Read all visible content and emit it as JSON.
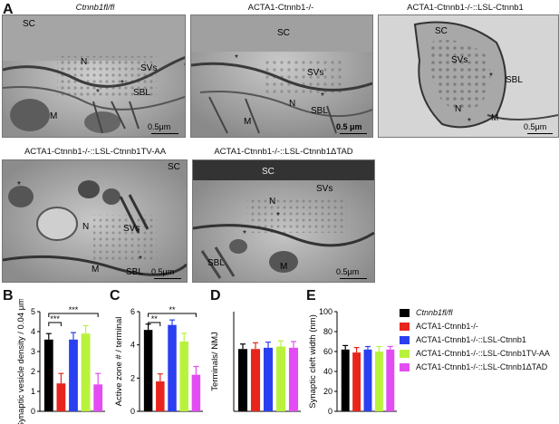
{
  "panel_letters": {
    "a": "A",
    "b": "B",
    "c": "C",
    "d": "D",
    "e": "E"
  },
  "em_panels": [
    {
      "title": "Ctnnb1fl/fl",
      "labels": [
        "SC",
        "N",
        "SVs",
        "SBL",
        "M",
        "*",
        "*"
      ],
      "scale": "0.5μm"
    },
    {
      "title": "ACTA1-Ctnnb1-/-",
      "labels": [
        "SC",
        "N",
        "SVs",
        "SBL",
        "M",
        "*",
        "*"
      ],
      "scale": "0.5 μm"
    },
    {
      "title": "ACTA1-Ctnnb1-/-::LSL-Ctnnb1",
      "labels": [
        "SC",
        "SVs",
        "SBL",
        "N",
        "M",
        "*",
        "*"
      ],
      "scale": "0.5μm"
    },
    {
      "title": "ACTA1-Ctnnb1-/-::LSL-Ctnnb1TV-AA",
      "labels": [
        "SC",
        "N",
        "SVs",
        "SBL",
        "M",
        "*",
        "*"
      ],
      "scale": "0.5μm"
    },
    {
      "title": "ACTA1-Ctnnb1-/-::LSL-Ctnnb1ΔTAD",
      "labels": [
        "SC",
        "SVs",
        "N",
        "SBL",
        "M",
        "*",
        "*"
      ],
      "scale": "0.5μm"
    }
  ],
  "colors": {
    "ctrl": "#000000",
    "ko": "#e8251c",
    "lsl": "#2a3ff0",
    "tvaa": "#b9f23d",
    "dtad": "#e34cf2"
  },
  "legend": [
    "Ctnnb1fl/fl",
    "ACTA1-Ctnnb1-/-",
    "ACTA1-Ctnnb1-/-::LSL-Ctnnb1",
    "ACTA1-Ctnnb1-/-::LSL-Ctnnb1TV-AA",
    "ACTA1-Ctnnb1-/-::LSL-Ctnnb1ΔTAD"
  ],
  "chart_data": [
    {
      "type": "bar",
      "panel": "B",
      "categories": [
        "Ctnnb1fl/fl",
        "ACTA1-Ctnnb1-/-",
        "ACTA1-Ctnnb1-/-::LSL-Ctnnb1",
        "ACTA1-Ctnnb1-/-::LSL-Ctnnb1TV-AA",
        "ACTA1-Ctnnb1-/-::LSL-Ctnnb1ΔTAD"
      ],
      "values": [
        3.6,
        1.4,
        3.6,
        3.9,
        1.35
      ],
      "errors": [
        0.3,
        0.5,
        0.35,
        0.4,
        0.55
      ],
      "ylabel": "Synaptic vesicle density / 0.04 μm²",
      "ylim": [
        0,
        5
      ],
      "yticks": [
        "0",
        "1",
        "2",
        "3",
        "4",
        "5"
      ],
      "significance": [
        {
          "from": 0,
          "to": 1,
          "label": "***"
        },
        {
          "from": 0,
          "to": 4,
          "label": "***"
        }
      ]
    },
    {
      "type": "bar",
      "panel": "C",
      "categories": [
        "Ctnnb1fl/fl",
        "ACTA1-Ctnnb1-/-",
        "ACTA1-Ctnnb1-/-::LSL-Ctnnb1",
        "ACTA1-Ctnnb1-/-::LSL-Ctnnb1TV-AA",
        "ACTA1-Ctnnb1-/-::LSL-Ctnnb1ΔTAD"
      ],
      "values": [
        4.9,
        1.8,
        5.2,
        4.2,
        2.2
      ],
      "errors": [
        0.35,
        0.45,
        0.3,
        0.5,
        0.5
      ],
      "ylabel": "Active zone # / terminal",
      "ylim": [
        0,
        6
      ],
      "yticks": [
        "0",
        "2",
        "4",
        "6"
      ],
      "significance": [
        {
          "from": 0,
          "to": 1,
          "label": "**"
        },
        {
          "from": 0,
          "to": 4,
          "label": "**"
        }
      ]
    },
    {
      "type": "bar",
      "panel": "D",
      "categories": [
        "Ctnnb1fl/fl",
        "ACTA1-Ctnnb1-/-",
        "ACTA1-Ctnnb1-/-::LSL-Ctnnb1",
        "ACTA1-Ctnnb1-/-::LSL-Ctnnb1TV-AA",
        "ACTA1-Ctnnb1-/-::LSL-Ctnnb1ΔTAD"
      ],
      "values": [
        5.0,
        5.0,
        5.1,
        5.2,
        5.1
      ],
      "errors": [
        0.4,
        0.5,
        0.45,
        0.45,
        0.5
      ],
      "ylabel": "Terminals/ NMJ",
      "ylim": [
        0,
        8
      ],
      "yticks": [],
      "significance": []
    },
    {
      "type": "bar",
      "panel": "E",
      "categories": [
        "Ctnnb1fl/fl",
        "ACTA1-Ctnnb1-/-",
        "ACTA1-Ctnnb1-/-::LSL-Ctnnb1",
        "ACTA1-Ctnnb1-/-::LSL-Ctnnb1TV-AA",
        "ACTA1-Ctnnb1-/-::LSL-Ctnnb1ΔTAD"
      ],
      "values": [
        62,
        59,
        62,
        60,
        62
      ],
      "errors": [
        4,
        5,
        3,
        5,
        3
      ],
      "ylabel": "Synaptic cleft width (nm)",
      "ylim": [
        0,
        100
      ],
      "yticks": [
        "0",
        "20",
        "40",
        "60",
        "80",
        "100"
      ],
      "significance": []
    }
  ]
}
